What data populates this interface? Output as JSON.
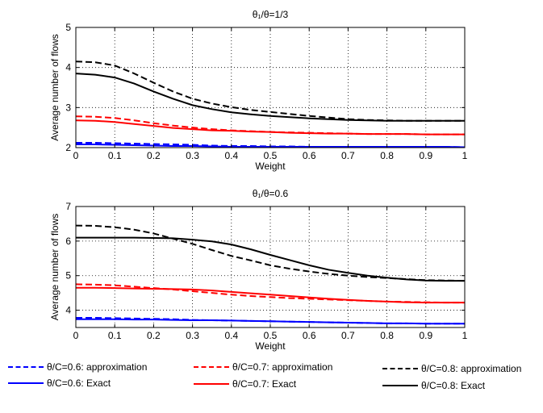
{
  "chart_data": [
    {
      "type": "line",
      "title": "θ₁/θ=1/3",
      "xlabel": "Weight",
      "ylabel": "Average number of flows",
      "xlim": [
        0,
        1
      ],
      "ylim": [
        2,
        5
      ],
      "xticks": [
        0,
        0.1,
        0.2,
        0.3,
        0.4,
        0.5,
        0.6,
        0.7,
        0.8,
        0.9,
        1
      ],
      "xtick_labels": [
        "0",
        "0.1",
        "0.2",
        "0.3",
        "0.4",
        "0.5",
        "0.6",
        "0.7",
        "0.8",
        "0.9",
        "1"
      ],
      "yticks": [
        2,
        3,
        4,
        5
      ],
      "ytick_labels": [
        "2",
        "3",
        "4",
        "5"
      ],
      "grid": true,
      "x": [
        0,
        0.05,
        0.1,
        0.15,
        0.2,
        0.25,
        0.3,
        0.35,
        0.4,
        0.45,
        0.5,
        0.55,
        0.6,
        0.65,
        0.7,
        0.75,
        0.8,
        0.85,
        0.9,
        0.95,
        1
      ],
      "series": [
        {
          "color": "#0000ff",
          "style": "dashed",
          "values": [
            2.12,
            2.12,
            2.11,
            2.1,
            2.09,
            2.08,
            2.07,
            2.05,
            2.04,
            2.04,
            2.03,
            2.03,
            2.02,
            2.02,
            2.02,
            2.02,
            2.02,
            2.02,
            2.02,
            2.02,
            2.01
          ]
        },
        {
          "color": "#0000ff",
          "style": "solid",
          "values": [
            2.08,
            2.08,
            2.07,
            2.06,
            2.05,
            2.04,
            2.04,
            2.03,
            2.02,
            2.02,
            2.02,
            2.02,
            2.02,
            2.02,
            2.02,
            2.02,
            2.02,
            2.02,
            2.02,
            2.02,
            2.01
          ]
        },
        {
          "color": "#ff0000",
          "style": "dashed",
          "values": [
            2.78,
            2.77,
            2.74,
            2.68,
            2.61,
            2.55,
            2.5,
            2.46,
            2.43,
            2.41,
            2.39,
            2.38,
            2.37,
            2.36,
            2.35,
            2.34,
            2.34,
            2.34,
            2.33,
            2.33,
            2.33
          ]
        },
        {
          "color": "#ff0000",
          "style": "solid",
          "values": [
            2.68,
            2.67,
            2.64,
            2.59,
            2.54,
            2.49,
            2.46,
            2.43,
            2.42,
            2.4,
            2.39,
            2.37,
            2.36,
            2.35,
            2.35,
            2.34,
            2.34,
            2.34,
            2.33,
            2.33,
            2.33
          ]
        },
        {
          "color": "#000000",
          "style": "dashed",
          "values": [
            4.15,
            4.13,
            4.05,
            3.85,
            3.62,
            3.4,
            3.22,
            3.1,
            3.01,
            2.94,
            2.89,
            2.84,
            2.79,
            2.75,
            2.71,
            2.69,
            2.68,
            2.67,
            2.67,
            2.67,
            2.67
          ]
        },
        {
          "color": "#000000",
          "style": "solid",
          "values": [
            3.85,
            3.82,
            3.75,
            3.6,
            3.4,
            3.22,
            3.06,
            2.96,
            2.88,
            2.83,
            2.79,
            2.76,
            2.73,
            2.71,
            2.69,
            2.68,
            2.67,
            2.67,
            2.67,
            2.67,
            2.67
          ]
        }
      ]
    },
    {
      "type": "line",
      "title": "θ₁/θ=0.6",
      "xlabel": "Weight",
      "ylabel": "Average number of flows",
      "xlim": [
        0,
        1
      ],
      "ylim": [
        3.5,
        7
      ],
      "xticks": [
        0,
        0.1,
        0.2,
        0.3,
        0.4,
        0.5,
        0.6,
        0.7,
        0.8,
        0.9,
        1
      ],
      "xtick_labels": [
        "0",
        "0.1",
        "0.2",
        "0.3",
        "0.4",
        "0.5",
        "0.6",
        "0.7",
        "0.8",
        "0.9",
        "1"
      ],
      "yticks": [
        4,
        5,
        6,
        7
      ],
      "ytick_labels": [
        "4",
        "5",
        "6",
        "7"
      ],
      "grid": true,
      "x": [
        0,
        0.05,
        0.1,
        0.15,
        0.2,
        0.25,
        0.3,
        0.35,
        0.4,
        0.45,
        0.5,
        0.55,
        0.6,
        0.65,
        0.7,
        0.75,
        0.8,
        0.85,
        0.9,
        0.95,
        1
      ],
      "series": [
        {
          "color": "#0000ff",
          "style": "dashed",
          "values": [
            3.78,
            3.78,
            3.77,
            3.76,
            3.75,
            3.74,
            3.72,
            3.71,
            3.7,
            3.69,
            3.68,
            3.67,
            3.66,
            3.65,
            3.64,
            3.63,
            3.62,
            3.62,
            3.61,
            3.61,
            3.61
          ]
        },
        {
          "color": "#0000ff",
          "style": "solid",
          "values": [
            3.74,
            3.74,
            3.74,
            3.73,
            3.73,
            3.72,
            3.71,
            3.71,
            3.7,
            3.69,
            3.68,
            3.67,
            3.66,
            3.65,
            3.64,
            3.63,
            3.62,
            3.62,
            3.61,
            3.61,
            3.61
          ]
        },
        {
          "color": "#ff0000",
          "style": "dashed",
          "values": [
            4.75,
            4.74,
            4.72,
            4.68,
            4.64,
            4.6,
            4.55,
            4.5,
            4.45,
            4.41,
            4.38,
            4.35,
            4.33,
            4.31,
            4.29,
            4.27,
            4.25,
            4.24,
            4.23,
            4.22,
            4.22
          ]
        },
        {
          "color": "#ff0000",
          "style": "solid",
          "values": [
            4.65,
            4.65,
            4.64,
            4.63,
            4.62,
            4.61,
            4.6,
            4.57,
            4.53,
            4.49,
            4.45,
            4.41,
            4.37,
            4.33,
            4.3,
            4.27,
            4.25,
            4.23,
            4.22,
            4.22,
            4.22
          ]
        },
        {
          "color": "#000000",
          "style": "dashed",
          "values": [
            6.45,
            6.44,
            6.4,
            6.33,
            6.22,
            6.07,
            5.92,
            5.74,
            5.57,
            5.44,
            5.3,
            5.2,
            5.12,
            5.05,
            5.0,
            4.96,
            4.93,
            4.9,
            4.87,
            4.86,
            4.85
          ]
        },
        {
          "color": "#000000",
          "style": "solid",
          "values": [
            6.1,
            6.1,
            6.1,
            6.1,
            6.09,
            6.08,
            6.04,
            5.99,
            5.9,
            5.76,
            5.6,
            5.45,
            5.3,
            5.17,
            5.08,
            5.0,
            4.94,
            4.89,
            4.86,
            4.85,
            4.85
          ]
        }
      ]
    }
  ],
  "legend": [
    {
      "label": "θ/C=0.6: approximation",
      "color": "#0000ff",
      "style": "dashed"
    },
    {
      "label": "θ/C=0.6: Exact",
      "color": "#0000ff",
      "style": "solid"
    },
    {
      "label": "θ/C=0.7: approximation",
      "color": "#ff0000",
      "style": "dashed"
    },
    {
      "label": "θ/C=0.7: Exact",
      "color": "#ff0000",
      "style": "solid"
    },
    {
      "label": "θ/C=0.8: approximation",
      "color": "#000000",
      "style": "dashed"
    },
    {
      "label": "θ/C=0.8: Exact",
      "color": "#000000",
      "style": "solid"
    }
  ]
}
